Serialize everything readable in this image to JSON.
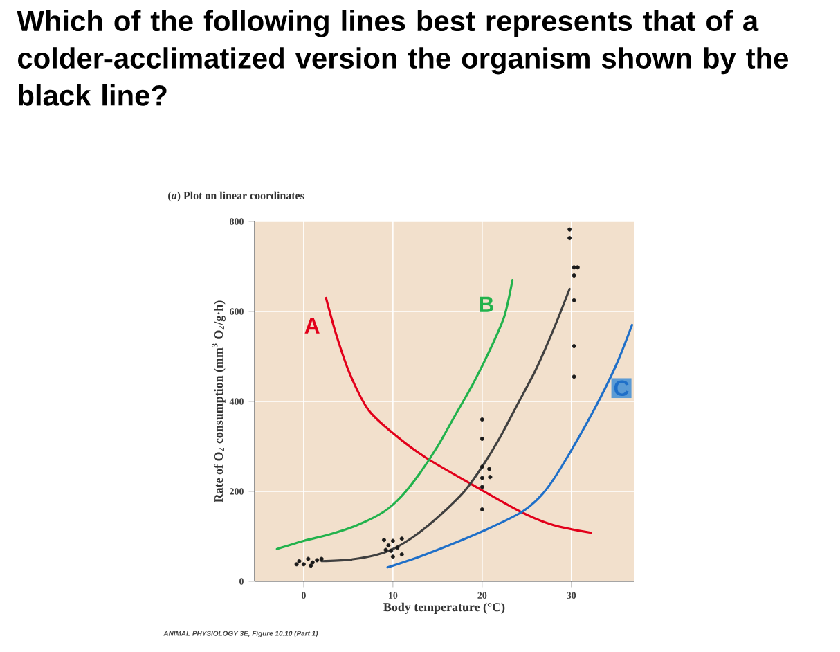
{
  "chart_data": {
    "type": "line",
    "title": "Which of the following lines best represents that of a colder-acclimatized version the organism shown by the black line?",
    "subtitle": "(*a*) Plot on linear coordinates",
    "xlabel": "Body temperature (°C)",
    "ylabel": "Rate of O$_{2}$ consumption (mm$^{3}$ O$_{2}$/g·h)",
    "annotations": [
      "ANIMAL PHYSIOLOGY 3E, Figure 10.10 (Part 1)"
    ],
    "xlim": [
      -5.5,
      37
    ],
    "ylim": [
      0,
      800
    ],
    "xticks": [
      0,
      10,
      20,
      30
    ],
    "yticks": [
      0,
      200,
      400,
      600,
      800
    ],
    "grid": true,
    "marker": "none",
    "series": [
      {
        "name": "A",
        "color": "#e2001a",
        "x": [
          2.5,
          3.7,
          5.2,
          7.3,
          10.4,
          13.7,
          18.9,
          24.3,
          28,
          32.2
        ],
        "values": [
          630,
          545,
          460,
          380,
          323,
          275,
          215,
          155,
          125,
          108
        ]
      },
      {
        "name": "B",
        "color": "#22b24c",
        "x": [
          -3,
          0,
          3,
          6,
          9,
          11,
          13,
          15,
          17,
          19,
          21,
          22.5,
          23.4
        ],
        "values": [
          72,
          90,
          105,
          125,
          155,
          190,
          240,
          300,
          370,
          440,
          520,
          590,
          670
        ]
      },
      {
        "color": "#404040",
        "x": [
          2,
          5,
          8,
          10,
          12,
          14,
          16,
          18,
          20,
          22,
          24,
          26,
          28,
          29.8
        ],
        "values": [
          45,
          48,
          58,
          72,
          95,
          125,
          160,
          200,
          255,
          320,
          395,
          470,
          560,
          650
        ]
      },
      {
        "name": "C",
        "color": "#1f6fc8",
        "x": [
          9.4,
          13,
          17.5,
          21,
          24.5,
          26.8,
          28.9,
          32.5,
          35,
          36.8
        ],
        "values": [
          31,
          55,
          90,
          120,
          155,
          195,
          255,
          380,
          480,
          570
        ]
      },
      {
        "type": "scatter",
        "marker": "circle",
        "color": "#1a1a1a",
        "x": [
          -0.5,
          0,
          0.5,
          1,
          1.5,
          -0.8,
          0.8,
          2,
          9,
          10,
          11,
          9.5,
          10.5,
          9.8,
          11,
          10,
          9.2,
          20,
          20,
          20,
          20.8,
          20,
          20.9,
          20,
          20,
          29.8,
          29.8,
          30.3,
          30.7,
          30.3,
          30.3,
          30.3,
          30.3
        ],
        "values": [
          45,
          38,
          50,
          42,
          47,
          38,
          35,
          50,
          92,
          90,
          95,
          80,
          75,
          68,
          60,
          55,
          70,
          360,
          317,
          255,
          250,
          230,
          232,
          210,
          160,
          782,
          763,
          698,
          698,
          680,
          625,
          523,
          455
        ]
      }
    ]
  }
}
